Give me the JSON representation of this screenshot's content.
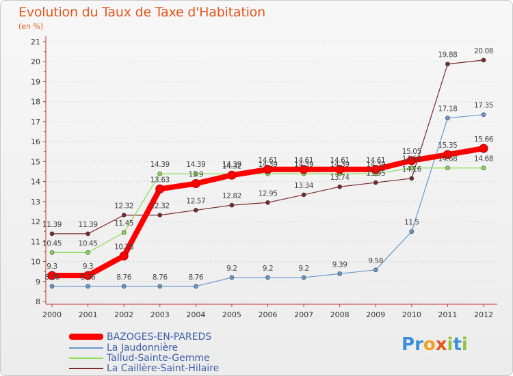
{
  "header": {
    "title": "Evolution du Taux de Taxe d'Habitation",
    "subtitle": "(en %)"
  },
  "chart_data": {
    "type": "line",
    "title": "Evolution du Taux de Taxe d'Habitation",
    "subtitle": "(en %)",
    "xlabel": "",
    "ylabel": "",
    "x": [
      "2000",
      "2001",
      "2002",
      "2003",
      "2004",
      "2005",
      "2006",
      "2007",
      "2008",
      "2009",
      "2010",
      "2011",
      "2012"
    ],
    "ylim": [
      8,
      21
    ],
    "yticks": [
      8,
      9,
      10,
      11,
      12,
      13,
      14,
      15,
      16,
      17,
      18,
      19,
      20,
      21
    ],
    "grid": "horizontal dotted",
    "legend_position": "bottom-left",
    "series": [
      {
        "name": "BAZOGES-EN-PAREDS",
        "color": "#ff0000",
        "values": [
          9.3,
          9.3,
          10.28,
          13.63,
          13.9,
          14.32,
          14.61,
          14.61,
          14.61,
          14.61,
          15.05,
          15.35,
          15.66
        ],
        "labels": [
          "9.3",
          "9.3",
          "10.28",
          "13.63",
          "13.9",
          "14.32",
          "14.61",
          "14.61",
          "14.61",
          "14.61",
          "15.05",
          "15.35",
          "15.66"
        ]
      },
      {
        "name": "La Jaudonnière",
        "color": "#6699cc",
        "values": [
          8.76,
          8.76,
          8.76,
          8.76,
          8.76,
          9.2,
          9.2,
          9.2,
          9.39,
          9.58,
          11.5,
          17.18,
          17.35
        ],
        "labels": [
          "8.76",
          "8.76",
          "8.76",
          "8.76",
          "8.76",
          "9.2",
          "9.2",
          "9.2",
          "9.39",
          "9.58",
          "11.5",
          "17.18",
          "17.35"
        ]
      },
      {
        "name": "Tallud-Sainte-Gemme",
        "color": "#88dd55",
        "values": [
          10.45,
          10.45,
          11.45,
          14.39,
          14.39,
          14.39,
          14.39,
          14.39,
          14.39,
          14.39,
          14.68,
          14.68,
          14.68
        ],
        "labels": [
          "10.45",
          "10.45",
          "11.45",
          "14.39",
          "14.39",
          "14.39",
          "14.39",
          "14.39",
          "14.39",
          "14.39",
          "14.68",
          "14.68",
          "14.68"
        ]
      },
      {
        "name": "La Caillère-Saint-Hilaire",
        "color": "#7a2a2a",
        "values": [
          11.39,
          11.39,
          12.32,
          12.32,
          12.57,
          12.82,
          12.95,
          13.34,
          13.74,
          13.95,
          14.16,
          19.88,
          20.08
        ],
        "labels": [
          "11.39",
          "11.39",
          "12.32",
          "12.32",
          "12.57",
          "12.82",
          "12.95",
          "13.34",
          "13.74",
          "13.95",
          "14.16",
          "19.88",
          "20.08"
        ]
      }
    ]
  },
  "legend": {
    "items": [
      {
        "label": "BAZOGES-EN-PAREDS",
        "color": "#ff0000"
      },
      {
        "label": "La Jaudonnière",
        "color": "#6699cc"
      },
      {
        "label": "Tallud-Sainte-Gemme",
        "color": "#88dd55"
      },
      {
        "label": "La Caillère-Saint-Hilaire",
        "color": "#7a2a2a"
      }
    ]
  },
  "brand": {
    "letters": [
      "P",
      "r",
      "o",
      "x",
      "i",
      "t",
      "i"
    ],
    "colors": [
      "#3b8fd8",
      "#3b8fd8",
      "#f0a020",
      "#e8541b",
      "#8fc43c",
      "#3b8fd8",
      "#8fc43c"
    ]
  }
}
